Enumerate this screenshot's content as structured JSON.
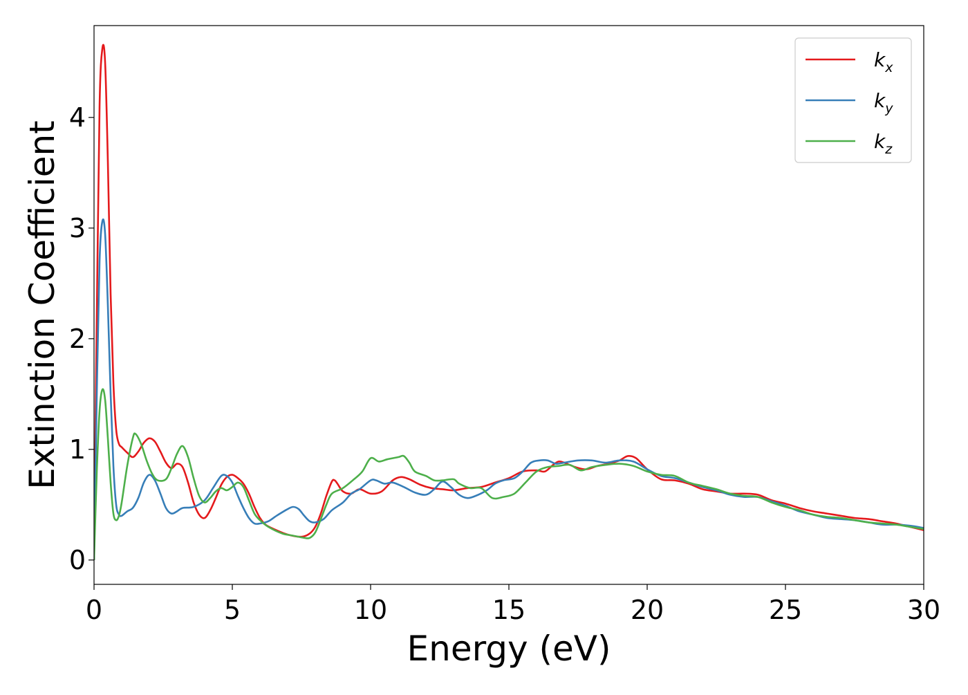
{
  "chart_data": {
    "type": "line",
    "xlabel": "Energy (eV)",
    "ylabel": "Extinction Coefficient",
    "xlim": [
      0,
      30
    ],
    "ylim": [
      -0.22,
      4.83
    ],
    "xticks": [
      0,
      5,
      10,
      15,
      20,
      25,
      30
    ],
    "xtick_labels": [
      "0",
      "5",
      "10",
      "15",
      "20",
      "25",
      "30"
    ],
    "yticks": [
      0,
      1,
      2,
      3,
      4
    ],
    "ytick_labels": [
      "0",
      "1",
      "2",
      "3",
      "4"
    ],
    "grid": false,
    "legend_position": "top-right",
    "series": [
      {
        "name": "k",
        "subscript": "x",
        "color": "#e41a1c",
        "points": [
          [
            0,
            0
          ],
          [
            0.1,
            2.2
          ],
          [
            0.2,
            4.1
          ],
          [
            0.3,
            4.62
          ],
          [
            0.4,
            4.5
          ],
          [
            0.5,
            3.6
          ],
          [
            0.6,
            2.4
          ],
          [
            0.7,
            1.6
          ],
          [
            0.8,
            1.18
          ],
          [
            0.9,
            1.05
          ],
          [
            1.0,
            1.02
          ],
          [
            1.2,
            0.97
          ],
          [
            1.4,
            0.93
          ],
          [
            1.6,
            0.98
          ],
          [
            1.8,
            1.06
          ],
          [
            2.0,
            1.1
          ],
          [
            2.2,
            1.07
          ],
          [
            2.4,
            0.98
          ],
          [
            2.6,
            0.88
          ],
          [
            2.8,
            0.83
          ],
          [
            3.0,
            0.87
          ],
          [
            3.2,
            0.84
          ],
          [
            3.4,
            0.7
          ],
          [
            3.6,
            0.52
          ],
          [
            3.8,
            0.41
          ],
          [
            4.0,
            0.38
          ],
          [
            4.2,
            0.45
          ],
          [
            4.4,
            0.56
          ],
          [
            4.6,
            0.68
          ],
          [
            4.8,
            0.75
          ],
          [
            5.0,
            0.77
          ],
          [
            5.2,
            0.74
          ],
          [
            5.4,
            0.69
          ],
          [
            5.6,
            0.6
          ],
          [
            5.8,
            0.48
          ],
          [
            6.0,
            0.38
          ],
          [
            6.2,
            0.32
          ],
          [
            6.5,
            0.28
          ],
          [
            7.0,
            0.23
          ],
          [
            7.5,
            0.21
          ],
          [
            7.8,
            0.24
          ],
          [
            8.0,
            0.3
          ],
          [
            8.2,
            0.42
          ],
          [
            8.4,
            0.58
          ],
          [
            8.6,
            0.71
          ],
          [
            8.7,
            0.72
          ],
          [
            8.8,
            0.69
          ],
          [
            9.0,
            0.62
          ],
          [
            9.3,
            0.6
          ],
          [
            9.6,
            0.64
          ],
          [
            10.0,
            0.6
          ],
          [
            10.4,
            0.62
          ],
          [
            10.8,
            0.72
          ],
          [
            11.1,
            0.75
          ],
          [
            11.4,
            0.73
          ],
          [
            11.8,
            0.68
          ],
          [
            12.2,
            0.65
          ],
          [
            12.6,
            0.64
          ],
          [
            13.0,
            0.63
          ],
          [
            13.5,
            0.65
          ],
          [
            14.0,
            0.66
          ],
          [
            14.5,
            0.7
          ],
          [
            15.0,
            0.74
          ],
          [
            15.5,
            0.8
          ],
          [
            16.0,
            0.81
          ],
          [
            16.3,
            0.8
          ],
          [
            16.6,
            0.86
          ],
          [
            16.8,
            0.89
          ],
          [
            17.0,
            0.88
          ],
          [
            17.4,
            0.84
          ],
          [
            17.8,
            0.82
          ],
          [
            18.2,
            0.85
          ],
          [
            18.6,
            0.87
          ],
          [
            19.0,
            0.9
          ],
          [
            19.3,
            0.94
          ],
          [
            19.6,
            0.92
          ],
          [
            20.0,
            0.82
          ],
          [
            20.5,
            0.73
          ],
          [
            21.0,
            0.72
          ],
          [
            21.5,
            0.69
          ],
          [
            22.0,
            0.64
          ],
          [
            22.5,
            0.62
          ],
          [
            23.0,
            0.6
          ],
          [
            23.5,
            0.6
          ],
          [
            24.0,
            0.59
          ],
          [
            24.5,
            0.54
          ],
          [
            25.0,
            0.51
          ],
          [
            25.5,
            0.47
          ],
          [
            26.0,
            0.44
          ],
          [
            26.5,
            0.42
          ],
          [
            27.0,
            0.4
          ],
          [
            27.5,
            0.38
          ],
          [
            28.0,
            0.37
          ],
          [
            28.5,
            0.35
          ],
          [
            29.0,
            0.33
          ],
          [
            29.5,
            0.3
          ],
          [
            30.0,
            0.27
          ]
        ]
      },
      {
        "name": "k",
        "subscript": "y",
        "color": "#377eb8",
        "points": [
          [
            0,
            0
          ],
          [
            0.1,
            1.5
          ],
          [
            0.2,
            2.7
          ],
          [
            0.3,
            3.06
          ],
          [
            0.4,
            2.95
          ],
          [
            0.5,
            2.3
          ],
          [
            0.6,
            1.5
          ],
          [
            0.7,
            0.85
          ],
          [
            0.8,
            0.5
          ],
          [
            0.9,
            0.41
          ],
          [
            1.0,
            0.4
          ],
          [
            1.2,
            0.44
          ],
          [
            1.4,
            0.47
          ],
          [
            1.6,
            0.56
          ],
          [
            1.8,
            0.7
          ],
          [
            2.0,
            0.77
          ],
          [
            2.2,
            0.72
          ],
          [
            2.4,
            0.6
          ],
          [
            2.6,
            0.47
          ],
          [
            2.8,
            0.42
          ],
          [
            3.0,
            0.44
          ],
          [
            3.2,
            0.47
          ],
          [
            3.6,
            0.48
          ],
          [
            4.0,
            0.54
          ],
          [
            4.3,
            0.65
          ],
          [
            4.6,
            0.76
          ],
          [
            4.8,
            0.76
          ],
          [
            5.0,
            0.7
          ],
          [
            5.2,
            0.58
          ],
          [
            5.4,
            0.47
          ],
          [
            5.6,
            0.38
          ],
          [
            5.8,
            0.33
          ],
          [
            6.0,
            0.33
          ],
          [
            6.3,
            0.35
          ],
          [
            6.6,
            0.4
          ],
          [
            7.0,
            0.46
          ],
          [
            7.2,
            0.48
          ],
          [
            7.4,
            0.46
          ],
          [
            7.6,
            0.4
          ],
          [
            7.8,
            0.35
          ],
          [
            8.0,
            0.34
          ],
          [
            8.3,
            0.37
          ],
          [
            8.6,
            0.45
          ],
          [
            9.0,
            0.52
          ],
          [
            9.3,
            0.6
          ],
          [
            9.6,
            0.64
          ],
          [
            10.0,
            0.72
          ],
          [
            10.2,
            0.72
          ],
          [
            10.5,
            0.69
          ],
          [
            10.8,
            0.7
          ],
          [
            11.2,
            0.66
          ],
          [
            11.6,
            0.61
          ],
          [
            12.0,
            0.59
          ],
          [
            12.3,
            0.64
          ],
          [
            12.6,
            0.71
          ],
          [
            12.9,
            0.66
          ],
          [
            13.2,
            0.59
          ],
          [
            13.5,
            0.56
          ],
          [
            13.8,
            0.58
          ],
          [
            14.2,
            0.63
          ],
          [
            14.5,
            0.69
          ],
          [
            14.8,
            0.72
          ],
          [
            15.2,
            0.74
          ],
          [
            15.5,
            0.8
          ],
          [
            15.8,
            0.88
          ],
          [
            16.1,
            0.9
          ],
          [
            16.4,
            0.9
          ],
          [
            16.7,
            0.87
          ],
          [
            17.0,
            0.88
          ],
          [
            17.5,
            0.9
          ],
          [
            18.0,
            0.9
          ],
          [
            18.5,
            0.88
          ],
          [
            19.0,
            0.9
          ],
          [
            19.5,
            0.89
          ],
          [
            20.0,
            0.82
          ],
          [
            20.5,
            0.76
          ],
          [
            21.0,
            0.74
          ],
          [
            21.5,
            0.7
          ],
          [
            22.0,
            0.66
          ],
          [
            22.5,
            0.63
          ],
          [
            23.0,
            0.59
          ],
          [
            23.5,
            0.57
          ],
          [
            24.0,
            0.57
          ],
          [
            24.5,
            0.53
          ],
          [
            25.0,
            0.49
          ],
          [
            25.5,
            0.44
          ],
          [
            26.0,
            0.41
          ],
          [
            26.5,
            0.38
          ],
          [
            27.0,
            0.37
          ],
          [
            27.5,
            0.36
          ],
          [
            28.0,
            0.34
          ],
          [
            28.5,
            0.32
          ],
          [
            29.0,
            0.32
          ],
          [
            29.5,
            0.31
          ],
          [
            30.0,
            0.29
          ]
        ]
      },
      {
        "name": "k",
        "subscript": "z",
        "color": "#4daf4a",
        "points": [
          [
            0,
            0
          ],
          [
            0.1,
            0.8
          ],
          [
            0.2,
            1.35
          ],
          [
            0.3,
            1.54
          ],
          [
            0.4,
            1.45
          ],
          [
            0.5,
            1.1
          ],
          [
            0.6,
            0.7
          ],
          [
            0.7,
            0.42
          ],
          [
            0.8,
            0.36
          ],
          [
            0.9,
            0.4
          ],
          [
            1.0,
            0.52
          ],
          [
            1.2,
            0.85
          ],
          [
            1.4,
            1.1
          ],
          [
            1.5,
            1.14
          ],
          [
            1.7,
            1.05
          ],
          [
            1.9,
            0.9
          ],
          [
            2.1,
            0.78
          ],
          [
            2.3,
            0.72
          ],
          [
            2.6,
            0.73
          ],
          [
            2.8,
            0.83
          ],
          [
            3.0,
            0.96
          ],
          [
            3.2,
            1.03
          ],
          [
            3.4,
            0.93
          ],
          [
            3.6,
            0.74
          ],
          [
            3.8,
            0.58
          ],
          [
            4.0,
            0.52
          ],
          [
            4.2,
            0.56
          ],
          [
            4.4,
            0.62
          ],
          [
            4.6,
            0.65
          ],
          [
            4.8,
            0.63
          ],
          [
            5.0,
            0.66
          ],
          [
            5.2,
            0.7
          ],
          [
            5.4,
            0.66
          ],
          [
            5.6,
            0.54
          ],
          [
            5.8,
            0.42
          ],
          [
            6.0,
            0.36
          ],
          [
            6.3,
            0.3
          ],
          [
            6.8,
            0.24
          ],
          [
            7.2,
            0.22
          ],
          [
            7.6,
            0.2
          ],
          [
            7.8,
            0.2
          ],
          [
            8.0,
            0.25
          ],
          [
            8.2,
            0.37
          ],
          [
            8.4,
            0.5
          ],
          [
            8.6,
            0.6
          ],
          [
            9.0,
            0.65
          ],
          [
            9.4,
            0.73
          ],
          [
            9.7,
            0.8
          ],
          [
            10.0,
            0.92
          ],
          [
            10.3,
            0.89
          ],
          [
            10.6,
            0.91
          ],
          [
            11.0,
            0.93
          ],
          [
            11.2,
            0.94
          ],
          [
            11.4,
            0.88
          ],
          [
            11.6,
            0.8
          ],
          [
            12.0,
            0.76
          ],
          [
            12.3,
            0.72
          ],
          [
            12.6,
            0.72
          ],
          [
            13.0,
            0.73
          ],
          [
            13.2,
            0.69
          ],
          [
            13.6,
            0.65
          ],
          [
            14.0,
            0.65
          ],
          [
            14.4,
            0.56
          ],
          [
            14.8,
            0.57
          ],
          [
            15.2,
            0.6
          ],
          [
            15.6,
            0.7
          ],
          [
            16.0,
            0.8
          ],
          [
            16.4,
            0.84
          ],
          [
            16.8,
            0.85
          ],
          [
            17.2,
            0.86
          ],
          [
            17.6,
            0.81
          ],
          [
            18.0,
            0.84
          ],
          [
            18.5,
            0.86
          ],
          [
            19.0,
            0.87
          ],
          [
            19.5,
            0.85
          ],
          [
            20.0,
            0.8
          ],
          [
            20.5,
            0.77
          ],
          [
            21.0,
            0.76
          ],
          [
            21.5,
            0.7
          ],
          [
            22.0,
            0.67
          ],
          [
            22.5,
            0.64
          ],
          [
            23.0,
            0.6
          ],
          [
            23.5,
            0.58
          ],
          [
            24.0,
            0.57
          ],
          [
            24.5,
            0.52
          ],
          [
            25.0,
            0.48
          ],
          [
            25.5,
            0.45
          ],
          [
            26.0,
            0.41
          ],
          [
            26.5,
            0.39
          ],
          [
            27.0,
            0.38
          ],
          [
            27.5,
            0.36
          ],
          [
            28.0,
            0.34
          ],
          [
            28.5,
            0.33
          ],
          [
            29.0,
            0.32
          ],
          [
            29.5,
            0.3
          ],
          [
            30.0,
            0.28
          ]
        ]
      }
    ]
  }
}
